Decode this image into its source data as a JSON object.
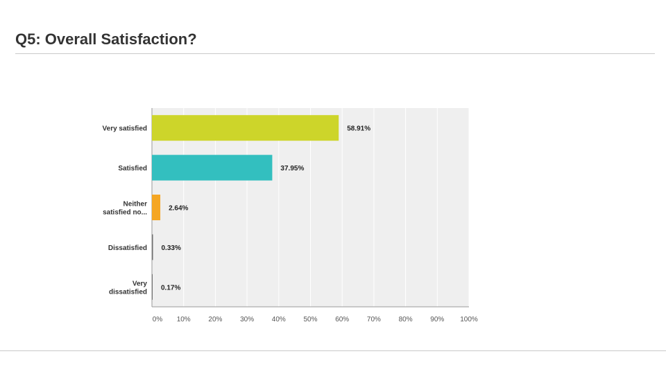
{
  "slide": {
    "title": "Q5: Overall Satisfaction?"
  },
  "chart_data": {
    "type": "bar",
    "orientation": "horizontal",
    "categories": [
      [
        "Very satisfied"
      ],
      [
        "Satisfied"
      ],
      [
        "Neither",
        "satisfied no..."
      ],
      [
        "Dissatisfied"
      ],
      [
        "Very",
        "dissatisfied"
      ]
    ],
    "values": [
      58.91,
      37.95,
      2.64,
      0.33,
      0.17
    ],
    "value_labels": [
      "58.91%",
      "37.95%",
      "2.64%",
      "0.33%",
      "0.17%"
    ],
    "bar_colors": [
      "#cdd52a",
      "#33bfbf",
      "#f5a623",
      "#6e6e6e",
      "#6e6e6e"
    ],
    "xlim": [
      0,
      100
    ],
    "x_ticks": [
      0,
      10,
      20,
      30,
      40,
      50,
      60,
      70,
      80,
      90,
      100
    ],
    "x_tick_labels": [
      "0%",
      "10%",
      "20%",
      "30%",
      "40%",
      "50%",
      "60%",
      "70%",
      "80%",
      "90%",
      "100%"
    ],
    "grid": true,
    "plot_background": "#efefef",
    "grid_color": "#ffffff"
  }
}
